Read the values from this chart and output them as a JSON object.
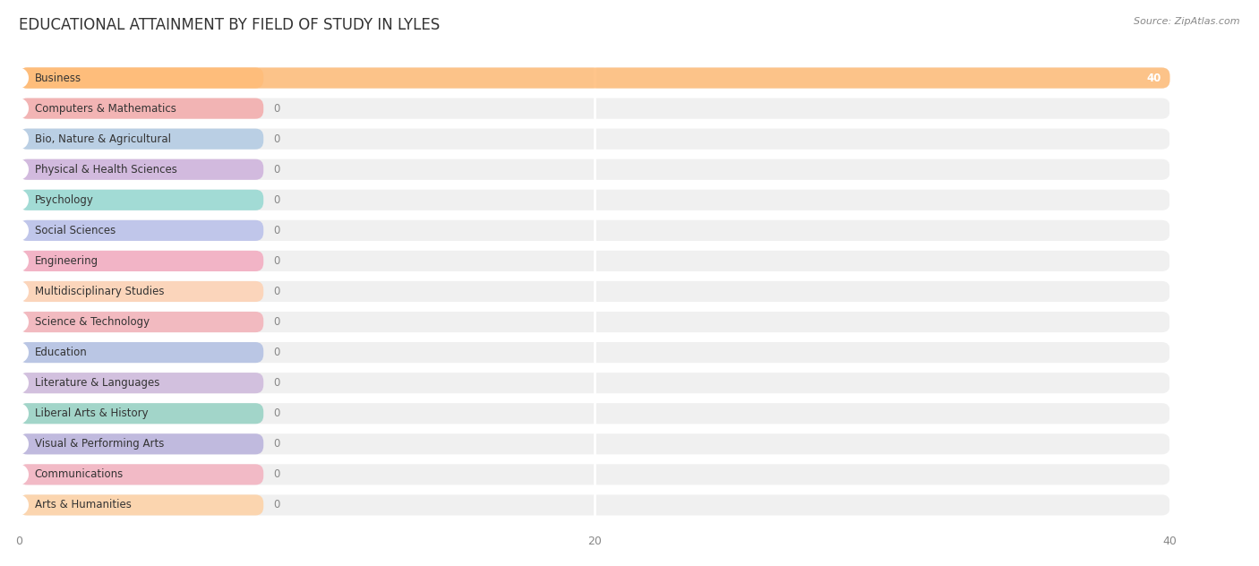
{
  "title": "EDUCATIONAL ATTAINMENT BY FIELD OF STUDY IN LYLES",
  "source": "Source: ZipAtlas.com",
  "categories": [
    "Business",
    "Computers & Mathematics",
    "Bio, Nature & Agricultural",
    "Physical & Health Sciences",
    "Psychology",
    "Social Sciences",
    "Engineering",
    "Multidisciplinary Studies",
    "Science & Technology",
    "Education",
    "Literature & Languages",
    "Liberal Arts & History",
    "Visual & Performing Arts",
    "Communications",
    "Arts & Humanities"
  ],
  "values": [
    40,
    0,
    0,
    0,
    0,
    0,
    0,
    0,
    0,
    0,
    0,
    0,
    0,
    0,
    0
  ],
  "bar_colors": [
    "#FFBB77",
    "#F4A0A0",
    "#A8C4E0",
    "#C8A8D8",
    "#88D4CC",
    "#B0B8E8",
    "#F4A0B8",
    "#FFCCAA",
    "#F4A8B0",
    "#A8B8E0",
    "#C8B0D8",
    "#88CCBC",
    "#B0A8D8",
    "#F4A8B8",
    "#FFCC99"
  ],
  "xlim": [
    0,
    42
  ],
  "xlim_display": [
    0,
    40
  ],
  "xticks": [
    0,
    20,
    40
  ],
  "background_color": "#ffffff",
  "bar_bg_color": "#f0f0f0",
  "row_sep_color": "#ffffff",
  "title_fontsize": 12,
  "label_fontsize": 8.5,
  "tick_fontsize": 9,
  "value_fontsize": 8.5,
  "label_bar_width": 8.5,
  "bar_height": 0.68
}
